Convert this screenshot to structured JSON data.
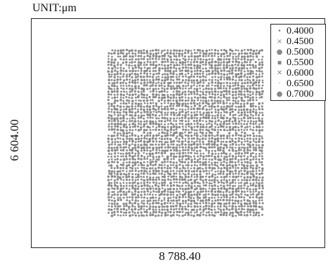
{
  "unit_label": "UNIT:μm",
  "chart_data": {
    "type": "scatter",
    "title": "",
    "xlabel": "8 788.40",
    "ylabel": "6 604.00",
    "grid": false,
    "legend_position": "top-right",
    "point_color": "#8a8a8a",
    "legend": [
      {
        "label": "0.4000",
        "marker": "dot-icon"
      },
      {
        "label": "0.4500",
        "marker": "x-icon"
      },
      {
        "label": "0.5000",
        "marker": "dot-icon"
      },
      {
        "label": "0.5500",
        "marker": "bar-icon"
      },
      {
        "label": "0.6000",
        "marker": "x-icon"
      },
      {
        "label": "0.6500",
        "marker": "dot-icon"
      },
      {
        "label": "0.7000",
        "marker": "dot-icon"
      }
    ]
  }
}
